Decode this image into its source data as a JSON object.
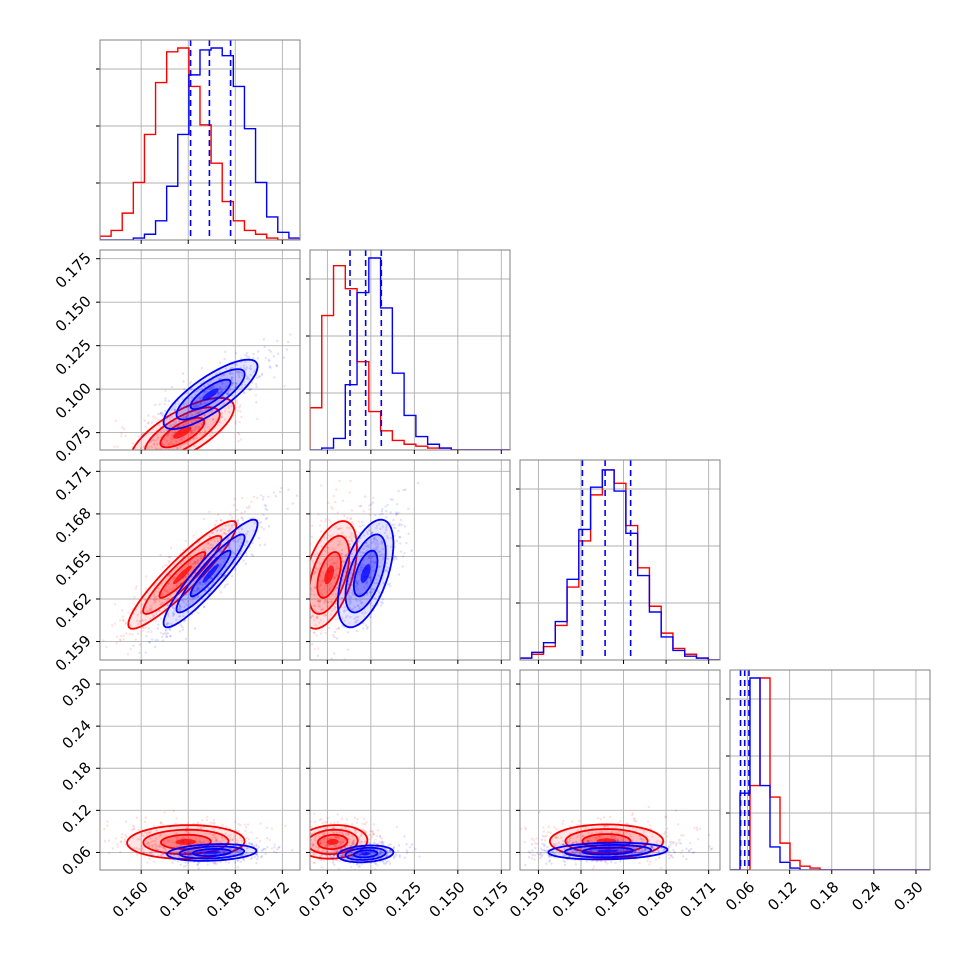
{
  "colors": {
    "red": "#ff0000",
    "blue": "#0000ff",
    "grid": "#b0b0b0",
    "frame": "#808080"
  },
  "chart_data": {
    "type": "corner",
    "grid": true,
    "series": [
      {
        "color": "red",
        "means": [
          0.1635,
          0.08,
          0.1637,
          0.075
        ]
      },
      {
        "color": "blue",
        "means": [
          0.1658,
          0.097,
          0.1638,
          0.06
        ]
      }
    ],
    "quantile_lines_blue": [
      [
        0.1642,
        0.1658,
        0.1676
      ],
      [
        0.088,
        0.097,
        0.106
      ],
      [
        0.1621,
        0.1637,
        0.1655
      ],
      [
        0.05,
        0.056,
        0.062
      ]
    ],
    "ranges": [
      [
        0.1565,
        0.1735
      ],
      [
        0.065,
        0.18
      ],
      [
        0.1577,
        0.1718
      ],
      [
        0.035,
        0.32
      ]
    ],
    "ticks": [
      [
        "0.160",
        "0.164",
        "0.168",
        "0.172"
      ],
      [
        "0.075",
        "0.100",
        "0.125",
        "0.150",
        "0.175"
      ],
      [
        "0.159",
        "0.162",
        "0.165",
        "0.168",
        "0.171"
      ],
      [
        "0.06",
        "0.12",
        "0.18",
        "0.24",
        "0.30"
      ]
    ],
    "histograms": {
      "p0": {
        "red": [
          0.02,
          0.05,
          0.14,
          0.3,
          0.55,
          0.82,
          0.98,
          1.0,
          0.8,
          0.6,
          0.4,
          0.2,
          0.1,
          0.05,
          0.03,
          0.01,
          0.0,
          0.0
        ],
        "blue": [
          0.0,
          0.0,
          0.0,
          0.01,
          0.03,
          0.1,
          0.28,
          0.55,
          0.86,
          0.99,
          1.0,
          0.96,
          0.8,
          0.58,
          0.3,
          0.12,
          0.04,
          0.01
        ]
      },
      "p1": {
        "red": [
          0.22,
          0.7,
          0.96,
          0.84,
          0.46,
          0.2,
          0.1,
          0.05,
          0.03,
          0.02,
          0.01,
          0.01,
          0.0,
          0.0,
          0.0,
          0.0,
          0.0
        ],
        "blue": [
          0.0,
          0.01,
          0.06,
          0.34,
          0.82,
          1.0,
          0.74,
          0.4,
          0.18,
          0.07,
          0.03,
          0.01,
          0.0,
          0.0,
          0.0,
          0.0,
          0.0
        ]
      },
      "p2": {
        "red": [
          0.01,
          0.03,
          0.07,
          0.18,
          0.38,
          0.62,
          0.86,
          0.99,
          0.92,
          0.7,
          0.48,
          0.28,
          0.14,
          0.06,
          0.03,
          0.01,
          0.0
        ],
        "blue": [
          0.01,
          0.04,
          0.09,
          0.2,
          0.42,
          0.68,
          0.9,
          0.99,
          0.88,
          0.66,
          0.44,
          0.25,
          0.12,
          0.05,
          0.02,
          0.01,
          0.0
        ]
      },
      "p3": {
        "red": [
          0.0,
          0.0,
          0.44,
          1.0,
          0.38,
          0.14,
          0.05,
          0.02,
          0.01,
          0.0,
          0.0,
          0.0,
          0.0,
          0.0,
          0.0,
          0.0,
          0.0,
          0.0,
          0.0,
          0.0
        ],
        "blue": [
          0.0,
          0.4,
          1.0,
          0.44,
          0.12,
          0.04,
          0.01,
          0.0,
          0.0,
          0.0,
          0.0,
          0.0,
          0.0,
          0.0,
          0.0,
          0.0,
          0.0,
          0.0,
          0.0,
          0.0
        ]
      }
    },
    "contours": {
      "red": {
        "p1_p0": {
          "center": [
            0.1635,
            0.075
          ],
          "sd": [
            0.0022,
            0.01
          ],
          "corr": 0.72
        },
        "p2_p0": {
          "center": [
            0.1635,
            0.1637
          ],
          "sd": [
            0.0023,
            0.0019
          ],
          "corr": 0.92
        },
        "p2_p1": {
          "center": [
            0.076,
            0.1637
          ],
          "sd": [
            0.008,
            0.0019
          ],
          "corr": 0.5
        },
        "p3_p0": {
          "center": [
            0.1638,
            0.075
          ],
          "sd": [
            0.0025,
            0.012
          ],
          "corr": 0.05
        },
        "p3_p1": {
          "center": [
            0.078,
            0.075
          ],
          "sd": [
            0.01,
            0.012
          ],
          "corr": 0.1
        },
        "p3_p2": {
          "center": [
            0.1638,
            0.076
          ],
          "sd": [
            0.002,
            0.012
          ],
          "corr": 0.0
        }
      },
      "blue": {
        "p1_p0": {
          "center": [
            0.1659,
            0.097
          ],
          "sd": [
            0.002,
            0.01
          ],
          "corr": 0.8
        },
        "p2_p0": {
          "center": [
            0.1659,
            0.1638
          ],
          "sd": [
            0.002,
            0.0019
          ],
          "corr": 0.92
        },
        "p2_p1": {
          "center": [
            0.097,
            0.1638
          ],
          "sd": [
            0.008,
            0.0019
          ],
          "corr": 0.55
        },
        "p3_p0": {
          "center": [
            0.166,
            0.06
          ],
          "sd": [
            0.0019,
            0.006
          ],
          "corr": 0.2
        },
        "p3_p1": {
          "center": [
            0.097,
            0.058
          ],
          "sd": [
            0.008,
            0.006
          ],
          "corr": 0.2
        },
        "p3_p2": {
          "center": [
            0.1639,
            0.062
          ],
          "sd": [
            0.0021,
            0.006
          ],
          "corr": 0.15
        }
      }
    }
  }
}
